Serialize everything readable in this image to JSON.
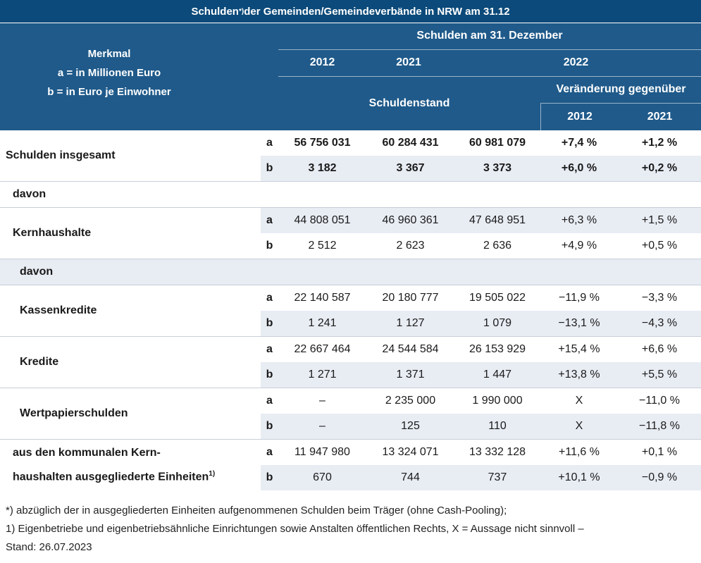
{
  "title": "Schulden",
  "title_sup": "*)",
  "title_rest": " der Gemeinden/Gemeindeverbände in NRW am 31.12",
  "header": {
    "merkmal": "Merkmal",
    "a_def": "a = in Millionen Euro",
    "b_def": "b = in Euro je Einwohner",
    "group": "Schulden am 31. Dezember",
    "y2012": "2012",
    "y2021": "2021",
    "y2022": "2022",
    "schuldenstand": "Schuldenstand",
    "veraenderung": "Veränderung gegenüber",
    "v2012": "2012",
    "v2021": "2021"
  },
  "rows": {
    "ges": {
      "label": "Schulden insgesamt",
      "a": {
        "sub": "a",
        "v1": "56 756 031",
        "v2": "60 284 431",
        "v3": "60 981 079",
        "c1": "+7,4 %",
        "c2": "+1,2 %"
      },
      "b": {
        "sub": "b",
        "v1": "3 182",
        "v2": "3 367",
        "v3": "3 373",
        "c1": "+6,0 %",
        "c2": "+0,2 %"
      }
    },
    "davon1": "davon",
    "kern": {
      "label": "Kernhaushalte",
      "a": {
        "sub": "a",
        "v1": "44 808 051",
        "v2": "46 960 361",
        "v3": "47 648 951",
        "c1": "+6,3 %",
        "c2": "+1,5 %"
      },
      "b": {
        "sub": "b",
        "v1": "2 512",
        "v2": "2 623",
        "v3": "2 636",
        "c1": "+4,9 %",
        "c2": "+0,5 %"
      }
    },
    "davon2": "davon",
    "kasse": {
      "label": "Kassenkredite",
      "a": {
        "sub": "a",
        "v1": "22 140 587",
        "v2": "20 180 777",
        "v3": "19 505 022",
        "c1": "−11,9 %",
        "c2": "−3,3 %"
      },
      "b": {
        "sub": "b",
        "v1": "1 241",
        "v2": "1 127",
        "v3": "1 079",
        "c1": "−13,1 %",
        "c2": "−4,3 %"
      }
    },
    "kred": {
      "label": "Kredite",
      "a": {
        "sub": "a",
        "v1": "22 667 464",
        "v2": "24 544 584",
        "v3": "26 153 929",
        "c1": "+15,4 %",
        "c2": "+6,6 %"
      },
      "b": {
        "sub": "b",
        "v1": "1 271",
        "v2": "1 371",
        "v3": "1 447",
        "c1": "+13,8 %",
        "c2": "+5,5 %"
      }
    },
    "wert": {
      "label": "Wertpapierschulden",
      "a": {
        "sub": "a",
        "v1": "–",
        "v2": "2 235 000",
        "v3": "1 990 000",
        "c1": "X",
        "c2": "−11,0 %"
      },
      "b": {
        "sub": "b",
        "v1": "–",
        "v2": "125",
        "v3": "110",
        "c1": "X",
        "c2": "−11,8 %"
      }
    },
    "ausg": {
      "label1": "aus den kommunalen Kern-",
      "label2": "haushalten ausgegliederte Einheiten",
      "label_sup": "1)",
      "a": {
        "sub": "a",
        "v1": "11 947 980",
        "v2": "13 324 071",
        "v3": "13 332 128",
        "c1": "+11,6 %",
        "c2": "+0,1 %"
      },
      "b": {
        "sub": "b",
        "v1": "670",
        "v2": "744",
        "v3": "737",
        "c1": "+10,1 %",
        "c2": "−0,9 %"
      }
    }
  },
  "footnotes": {
    "f1": "*) abzüglich der in ausgegliederten Einheiten aufgenommenen Schulden beim Träger (ohne Cash-Pooling);",
    "f2": "1) Eigenbetriebe und eigenbetriebsähnliche Einrichtungen sowie Anstalten öffentlichen Rechts, X = Aussage nicht sinnvoll –",
    "f3": "Stand: 26.07.2023"
  },
  "colors": {
    "title_bg": "#0b4a7a",
    "header_bg": "#1f5a8a",
    "shade": "#e8ecf3"
  }
}
